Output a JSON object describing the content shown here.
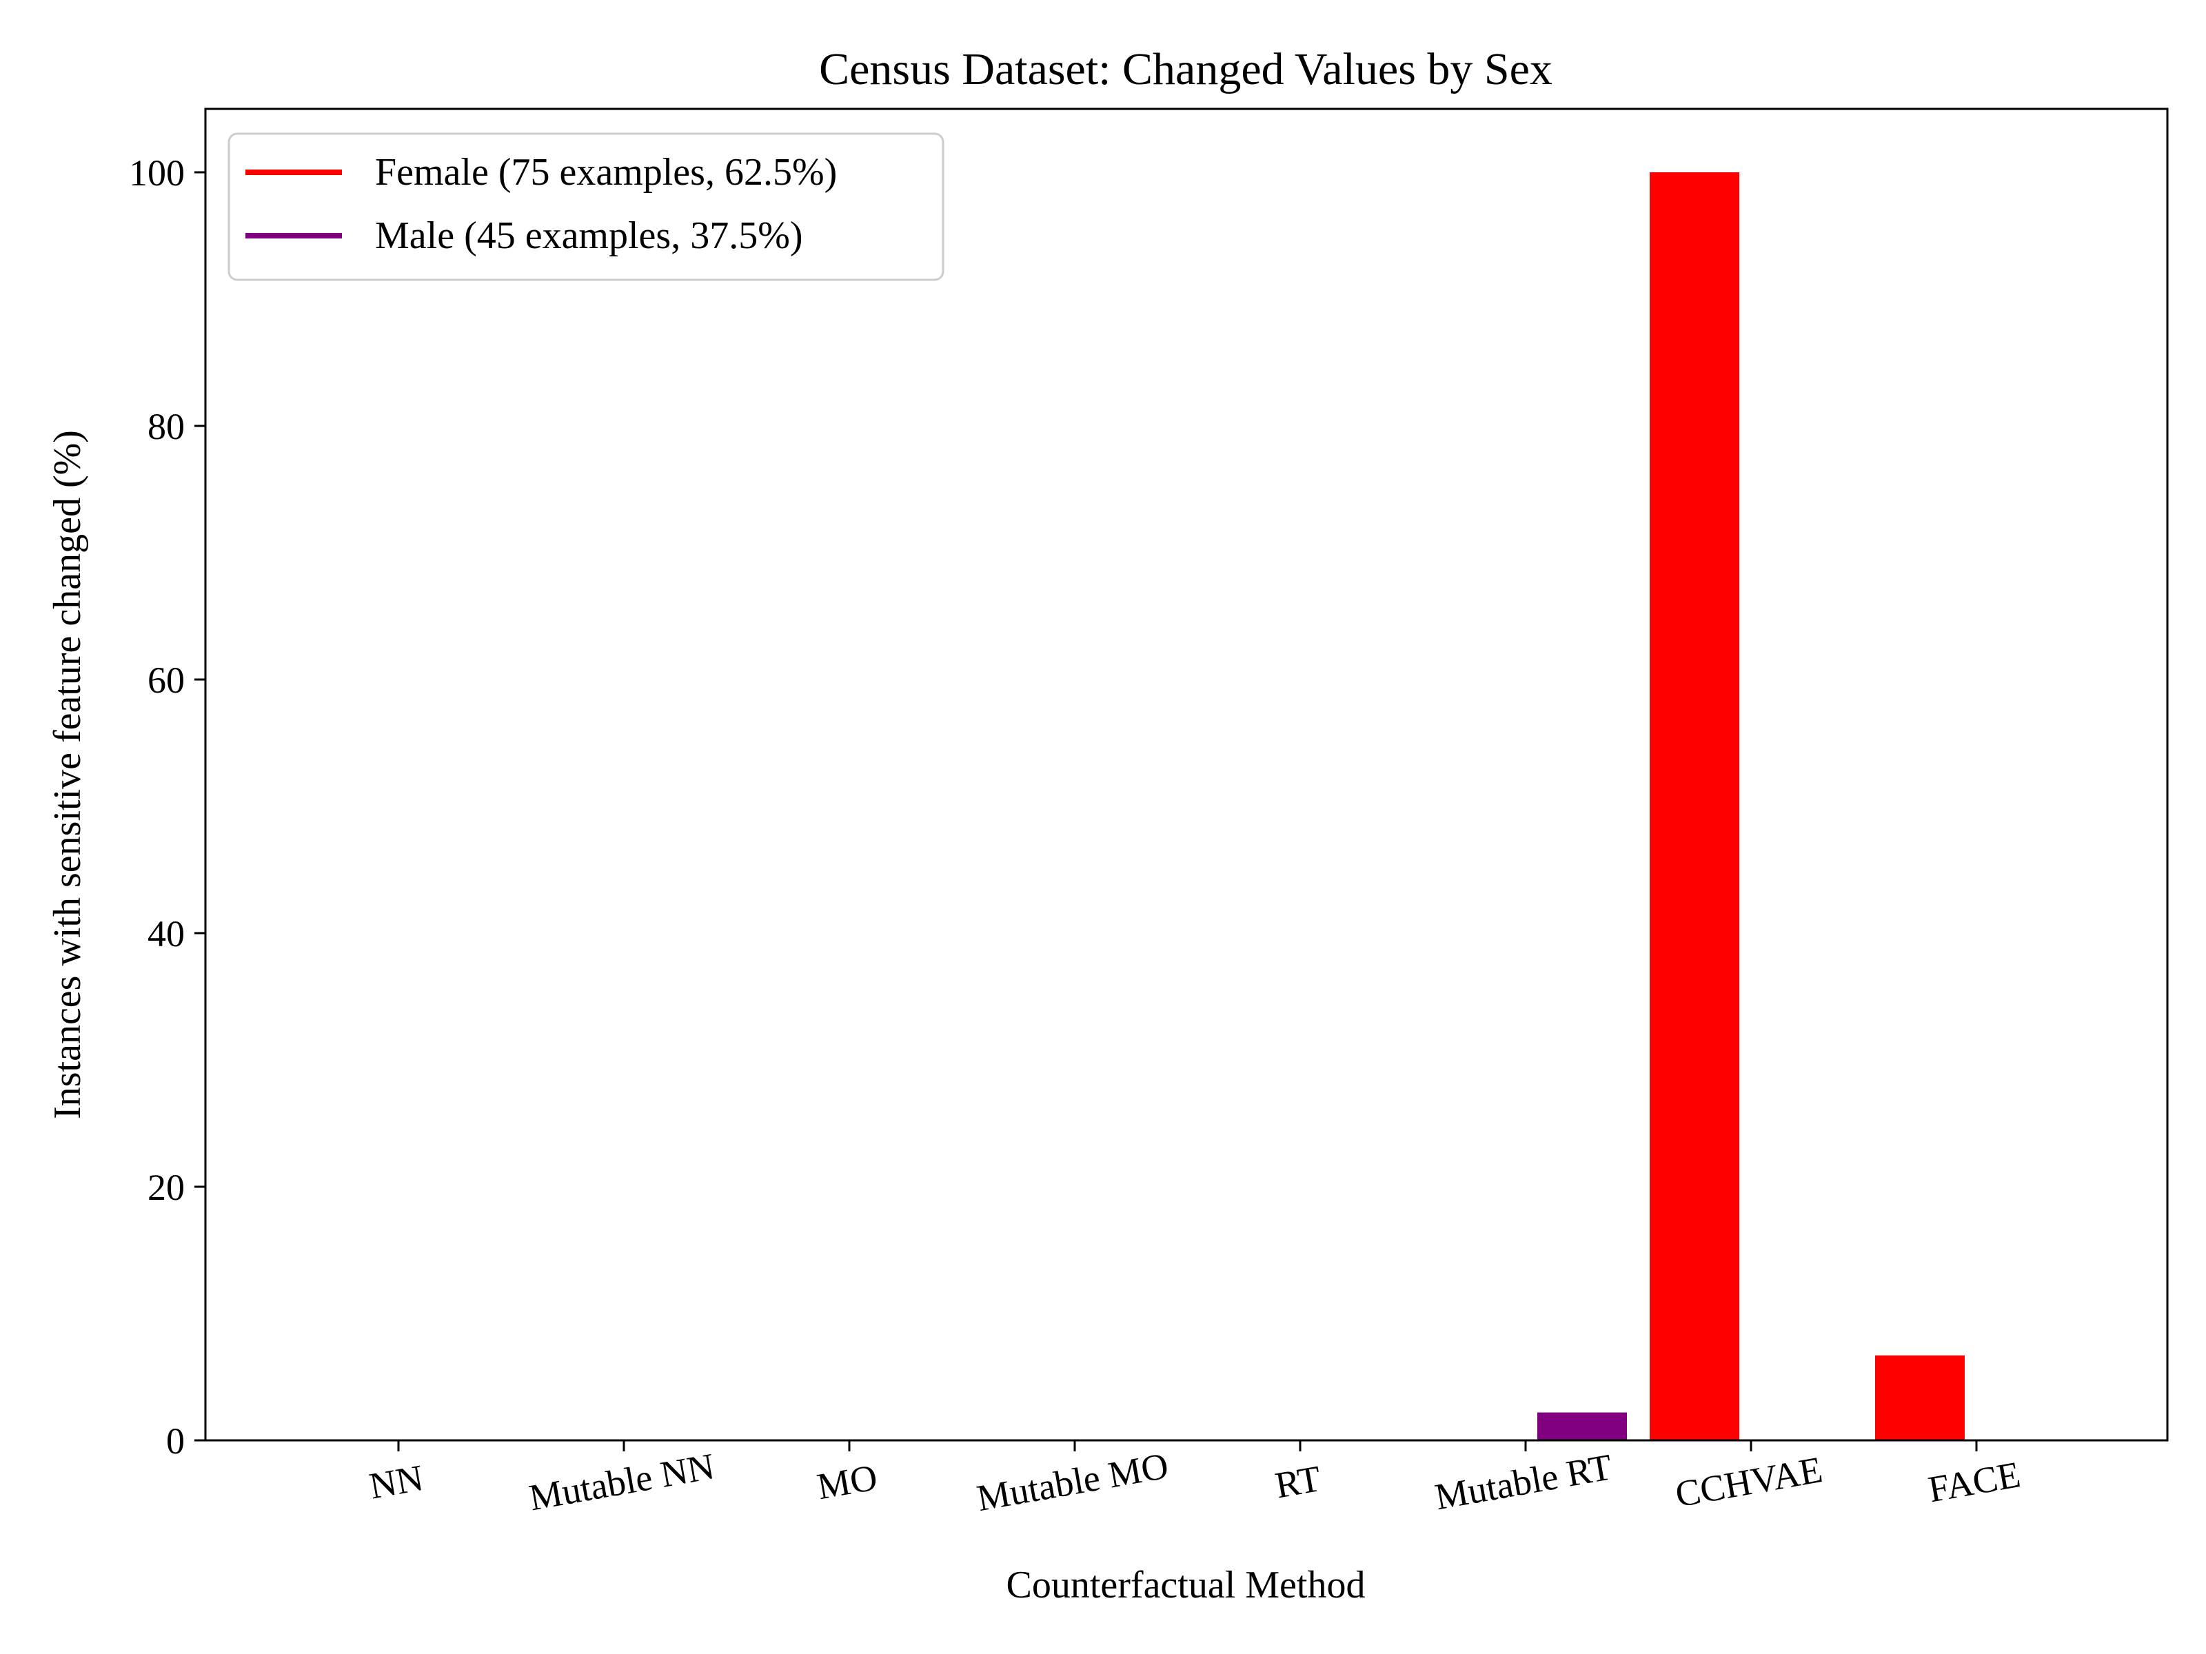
{
  "chart_data": {
    "type": "bar",
    "title": "Census Dataset: Changed Values by Sex",
    "xlabel": "Counterfactual Method",
    "ylabel": "Instances with sensitive feature changed (%)",
    "categories": [
      "NN",
      "Mutable NN",
      "MO",
      "Mutable MO",
      "RT",
      "Mutable RT",
      "CCHVAE",
      "FACE"
    ],
    "series": [
      {
        "name": "Female (75 examples, 62.5%)",
        "color": "#ff0000",
        "values": [
          0,
          0,
          0,
          0,
          0,
          0,
          100,
          6.7
        ]
      },
      {
        "name": "Male (45 examples, 37.5%)",
        "color": "#800080",
        "values": [
          0,
          0,
          0,
          0,
          0,
          2.2,
          0,
          0
        ]
      }
    ],
    "ylim": [
      0,
      105
    ],
    "yticks": [
      0,
      20,
      40,
      60,
      80,
      100
    ],
    "xtick_rotation_deg": -10,
    "grid": false,
    "legend_position": "top-left"
  }
}
